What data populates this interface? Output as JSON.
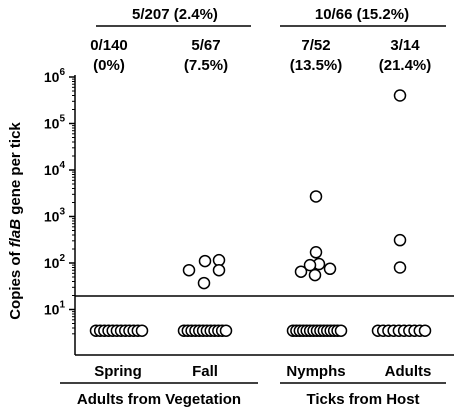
{
  "chart_data": {
    "type": "scatter",
    "y_scale": "log",
    "ylim": [
      1,
      1000000
    ],
    "ylabel_pre": "Copies of ",
    "ylabel_italic": "flaB",
    "ylabel_post": " gene per tick",
    "yticks": [
      {
        "value": 10,
        "base": "10",
        "exp": "1"
      },
      {
        "value": 100,
        "base": "10",
        "exp": "2"
      },
      {
        "value": 1000,
        "base": "10",
        "exp": "3"
      },
      {
        "value": 10000,
        "base": "10",
        "exp": "4"
      },
      {
        "value": 100000,
        "base": "10",
        "exp": "5"
      },
      {
        "value": 1000000,
        "base": "10",
        "exp": "6"
      }
    ],
    "threshold": 20,
    "categories": [
      "Spring",
      "Fall",
      "Nymphs",
      "Adults"
    ],
    "group_labels": [
      "Adults from Vegetation",
      "Ticks from Host"
    ],
    "group_totals": [
      {
        "label": "5/207 (2.4%)"
      },
      {
        "label": "10/66 (15.2%)"
      }
    ],
    "category_counts": [
      {
        "count": "0/140",
        "percent": "(0%)"
      },
      {
        "count": "5/67",
        "percent": "(7.5%)"
      },
      {
        "count": "7/52",
        "percent": "(13.5%)"
      },
      {
        "count": "3/14",
        "percent": "(21.4%)"
      }
    ],
    "series": [
      {
        "category": "Spring",
        "positives": [],
        "negatives_shown": 12,
        "negative_value": 3.5
      },
      {
        "category": "Fall",
        "positives": [
          70,
          110,
          115,
          70,
          37
        ],
        "negatives_shown": 12,
        "negative_value": 3.5
      },
      {
        "category": "Nymphs",
        "positives": [
          2700,
          170,
          65,
          95,
          90,
          75,
          55
        ],
        "negatives_shown": 15,
        "negative_value": 3.5
      },
      {
        "category": "Adults",
        "positives": [
          400000,
          310,
          80
        ],
        "negatives_shown": 10,
        "negative_value": 3.5
      }
    ]
  }
}
